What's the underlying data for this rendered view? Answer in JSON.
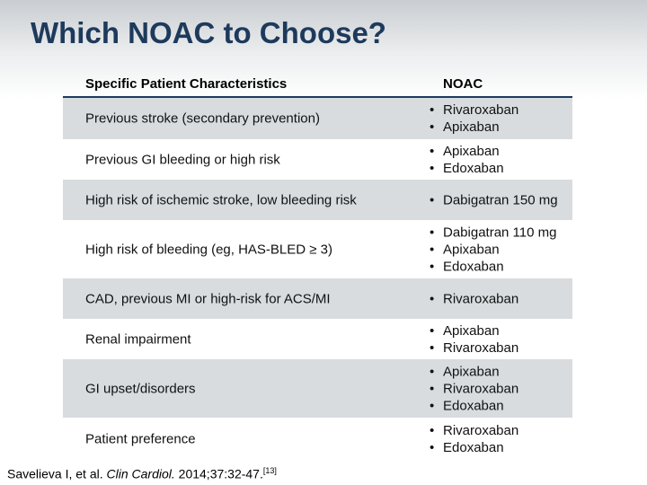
{
  "header": {
    "title": "Which NOAC to Choose?"
  },
  "table": {
    "columns": [
      "Specific Patient Characteristics",
      "NOAC"
    ],
    "rows": [
      {
        "characteristic": "Previous stroke (secondary prevention)",
        "noac": [
          "Rivaroxaban",
          "Apixaban"
        ]
      },
      {
        "characteristic": "Previous GI bleeding or high risk",
        "noac": [
          "Apixaban",
          "Edoxaban"
        ]
      },
      {
        "characteristic": "High risk of ischemic stroke, low bleeding risk",
        "noac": [
          "Dabigatran 150 mg"
        ]
      },
      {
        "characteristic": "High risk of bleeding (eg, HAS-BLED ≥ 3)",
        "noac": [
          "Dabigatran 110 mg",
          "Apixaban",
          "Edoxaban"
        ]
      },
      {
        "characteristic": "CAD, previous MI or high-risk for ACS/MI",
        "noac": [
          "Rivaroxaban"
        ]
      },
      {
        "characteristic": "Renal impairment",
        "noac": [
          "Apixaban",
          "Rivaroxaban"
        ]
      },
      {
        "characteristic": "GI upset/disorders",
        "noac": [
          "Apixaban",
          "Rivaroxaban",
          "Edoxaban"
        ]
      },
      {
        "characteristic": "Patient preference",
        "noac": [
          "Rivaroxaban",
          "Edoxaban"
        ]
      }
    ]
  },
  "citation": {
    "authors": "Savelieva I, et al.",
    "journal": "Clin Cardiol.",
    "details": "2014;37:32-47.",
    "ref": "[13]"
  }
}
